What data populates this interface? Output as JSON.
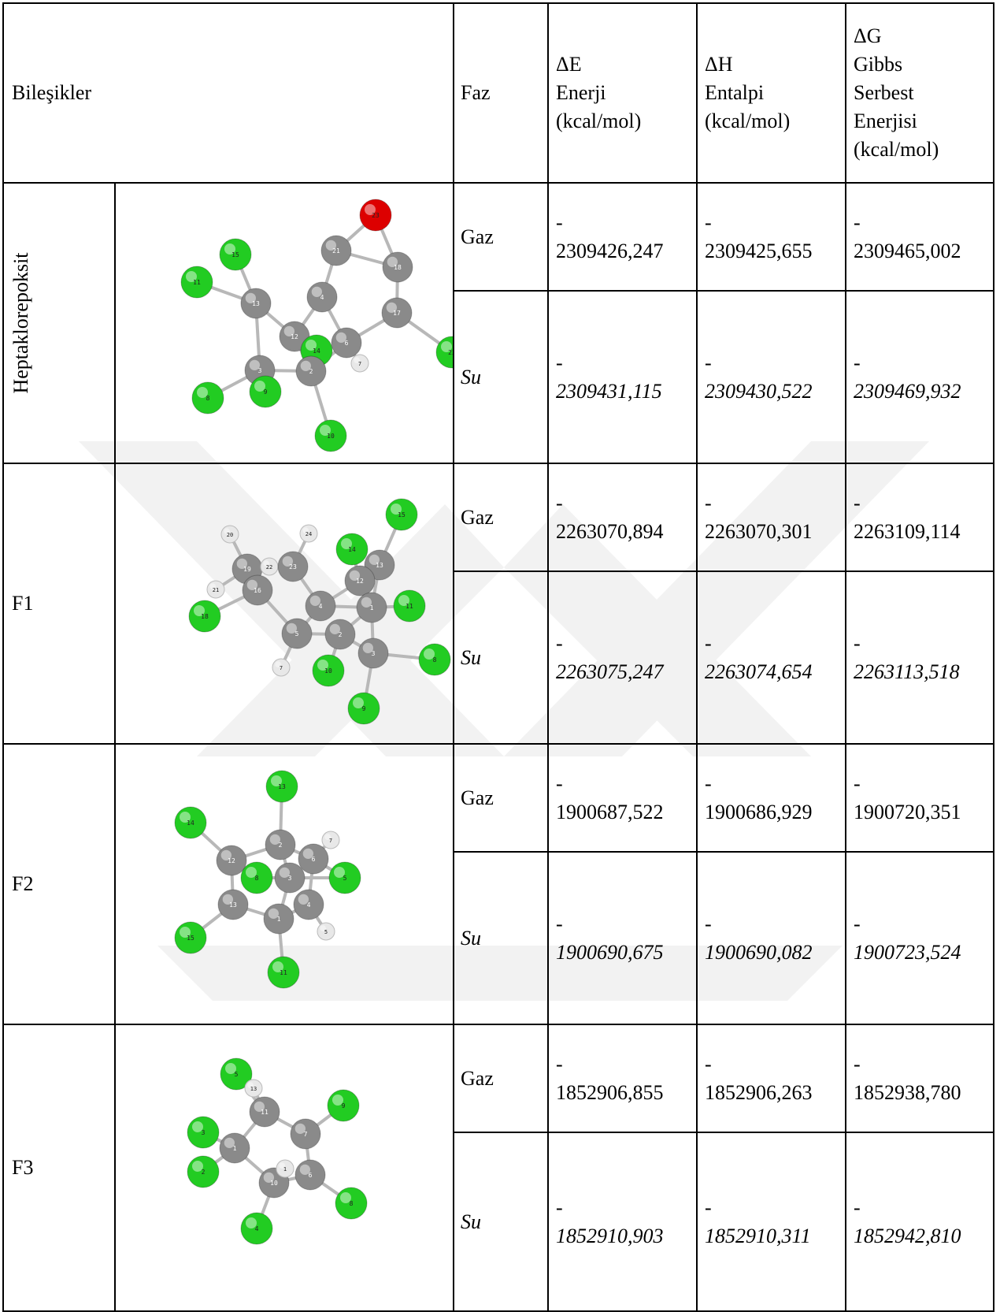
{
  "header": {
    "compounds": "Bileşikler",
    "phase": "Faz",
    "dE": [
      "ΔE",
      "Enerji",
      "(kcal/mol)"
    ],
    "dH": [
      "ΔH",
      "Entalpi",
      "(kcal/mol)"
    ],
    "dG": [
      "ΔG",
      "Gibbs",
      "Serbest",
      "Enerjisi",
      "(kcal/mol)"
    ]
  },
  "rows": [
    {
      "name": "Heptaklorepoksit",
      "molecule_icon": "heptachlorepoxide-molecule-model",
      "gaz": {
        "phase": "Gaz",
        "dE": "2309426,247",
        "dH": "2309425,655",
        "dG": "2309465,002"
      },
      "su": {
        "phase": "Su",
        "dE": "2309431,115",
        "dH": "2309430,522",
        "dG": "2309469,932"
      }
    },
    {
      "name": "F1",
      "molecule_icon": "f1-molecule-model",
      "gaz": {
        "phase": "Gaz",
        "dE": "2263070,894",
        "dH": "2263070,301",
        "dG": "2263109,114"
      },
      "su": {
        "phase": "Su",
        "dE": "2263075,247",
        "dH": "2263074,654",
        "dG": "2263113,518"
      }
    },
    {
      "name": "F2",
      "molecule_icon": "f2-molecule-model",
      "gaz": {
        "phase": "Gaz",
        "dE": "1900687,522",
        "dH": "1900686,929",
        "dG": "1900720,351"
      },
      "su": {
        "phase": "Su",
        "dE": "1900690,675",
        "dH": "1900690,082",
        "dG": "1900723,524"
      }
    },
    {
      "name": "F3",
      "molecule_icon": "f3-molecule-model",
      "gaz": {
        "phase": "Gaz",
        "dE": "1852906,855",
        "dH": "1852906,263",
        "dG": "1852938,780"
      },
      "su": {
        "phase": "Su",
        "dE": "1852910,903",
        "dH": "1852910,311",
        "dG": "1852942,810"
      }
    }
  ],
  "minus_sign": "-",
  "colors": {
    "chlorine": "#22cc22",
    "carbon": "#8a8a8a",
    "hydrogen": "#e8e8e8",
    "oxygen": "#dd0000",
    "bond": "#b8b8b8",
    "watermark": "#eeeeee"
  },
  "atom_labels": {
    "m0": [
      "23",
      "21",
      "18",
      "15",
      "11",
      "13",
      "4",
      "17",
      "12",
      "14",
      "6",
      "7",
      "22",
      "3",
      "2",
      "8",
      "9",
      "10"
    ],
    "m1": [
      "15",
      "20",
      "24",
      "14",
      "19",
      "22",
      "23",
      "13",
      "12",
      "21",
      "16",
      "4",
      "1",
      "11",
      "18",
      "5",
      "2",
      "3",
      "7",
      "10",
      "8",
      "9"
    ],
    "m2": [
      "13",
      "14",
      "2",
      "7",
      "12",
      "8",
      "3",
      "6",
      "5",
      "13",
      "4",
      "1",
      "5",
      "15",
      "11"
    ],
    "m3": [
      "5",
      "13",
      "11",
      "9",
      "7",
      "3",
      "1",
      "2",
      "10",
      "1",
      "6",
      "8",
      "4"
    ]
  }
}
